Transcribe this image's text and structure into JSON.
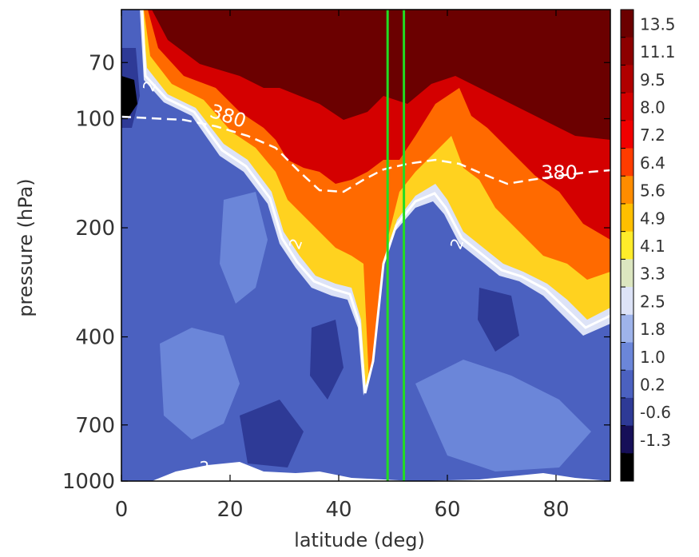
{
  "chart_data": {
    "type": "heatmap",
    "xlabel": "latitude (deg)",
    "ylabel": "pressure (hPa)",
    "xlim": [
      0,
      90
    ],
    "ylim": [
      1000,
      50
    ],
    "yscale": "log",
    "x_ticks": [
      "0",
      "20",
      "40",
      "60",
      "80"
    ],
    "x_tick_values": [
      0,
      20,
      40,
      60,
      80
    ],
    "y_ticks": [
      "70",
      "100",
      "200",
      "400",
      "700",
      "1000"
    ],
    "y_tick_values": [
      70,
      100,
      200,
      400,
      700,
      1000
    ],
    "colorbar": {
      "labels": [
        "13.5",
        "11.1",
        "9.5",
        "8.0",
        "7.2",
        "6.4",
        "5.6",
        "4.9",
        "4.1",
        "3.3",
        "2.5",
        "1.8",
        "1.0",
        "0.2",
        "-0.6",
        "-1.3"
      ],
      "colors": [
        "#6b0000",
        "#8c0000",
        "#b00000",
        "#d40000",
        "#f00000",
        "#ff3c00",
        "#ff8c00",
        "#ffbf00",
        "#ffec2a",
        "#dce6c0",
        "#dde3f7",
        "#9eb3ea",
        "#6b86d9",
        "#4b61c0",
        "#2e3a96",
        "#160f58",
        "#000000"
      ]
    },
    "contours": [
      {
        "label": "2",
        "description": "solid white contour, 2 PVU"
      },
      {
        "label": "380",
        "description": "dashed white contour, 380 K"
      }
    ],
    "vertical_lines": [
      49,
      52
    ],
    "vertical_line_color": "#22dd22",
    "surface_label": "2"
  }
}
